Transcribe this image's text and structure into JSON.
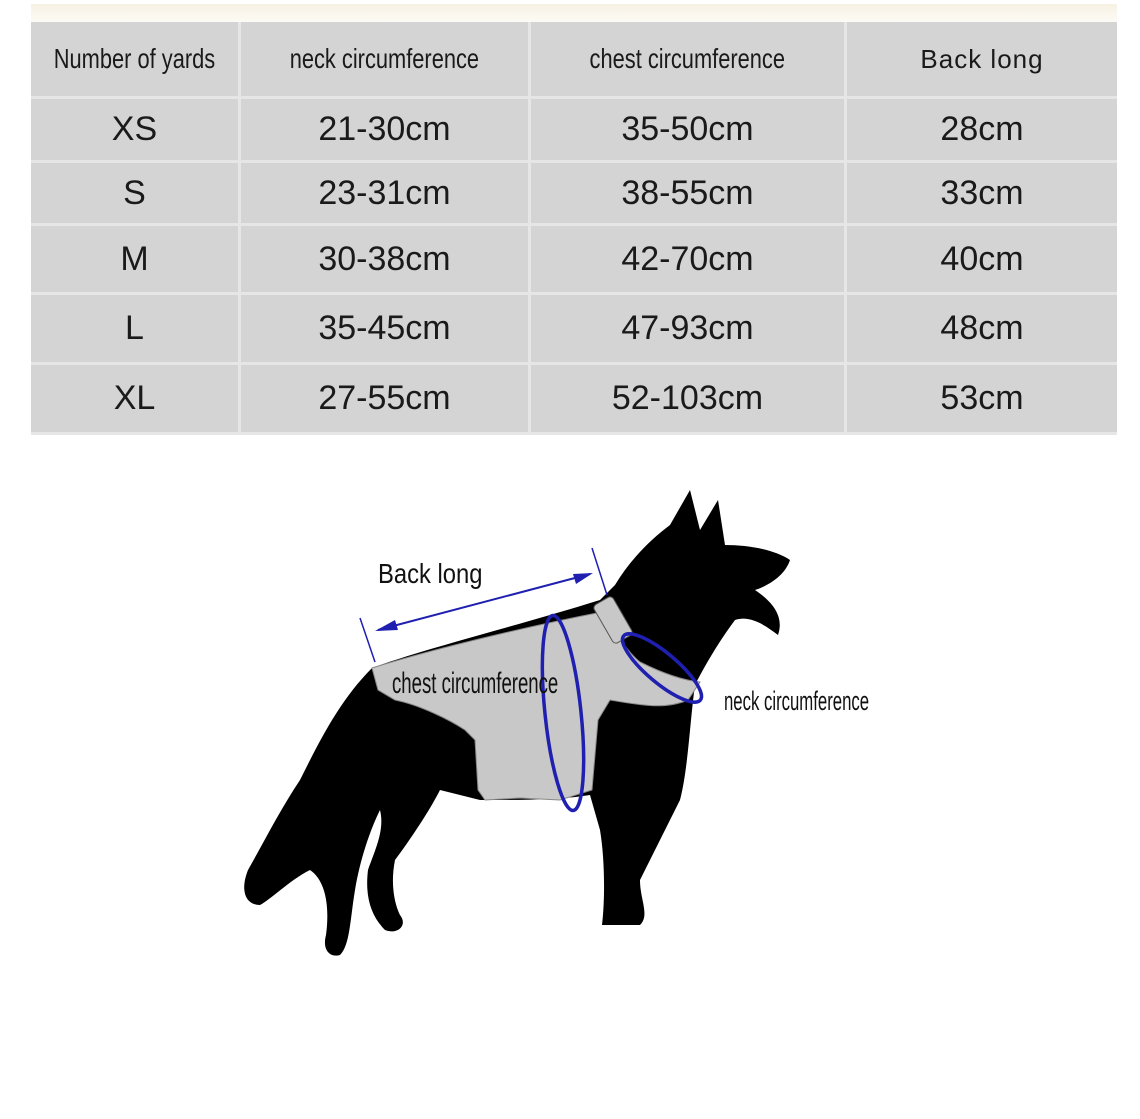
{
  "table": {
    "headers": [
      "Number of yards",
      "neck circumference",
      "chest circumference",
      "Back long"
    ],
    "rows": [
      [
        "XS",
        "21-30cm",
        "35-50cm",
        "28cm"
      ],
      [
        "S",
        "23-31cm",
        "38-55cm",
        "33cm"
      ],
      [
        "M",
        "30-38cm",
        "42-70cm",
        "40cm"
      ],
      [
        "L",
        "35-45cm",
        "47-93cm",
        "48cm"
      ],
      [
        "XL",
        "27-55cm",
        "52-103cm",
        "53cm"
      ]
    ]
  },
  "diagram": {
    "back_long_label": "Back long",
    "chest_label": "chest circumference",
    "neck_label": "neck circumference",
    "measure_color": "#1f1fb0",
    "vest_color": "#c8c8c8",
    "silhouette_color": "#000000"
  }
}
